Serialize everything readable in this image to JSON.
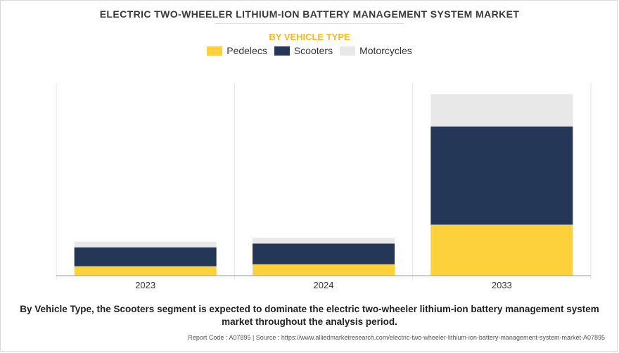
{
  "title": "ELECTRIC TWO-WHEELER LITHIUM-ION BATTERY MANAGEMENT SYSTEM MARKET",
  "subtitle": "BY VEHICLE TYPE",
  "caption": "By Vehicle Type, the Scooters segment is expected to dominate the electric two-wheeler lithium-ion battery management system market throughout the analysis period.",
  "footer": "Report Code : A07895  |  Source : https://www.alliedmarketresearch.com/electric-two-wheeler-lithium-ion-battery-management-system-market-A07895",
  "chart_data": {
    "type": "bar",
    "stacked": true,
    "categories": [
      "2023",
      "2024",
      "2033"
    ],
    "series": [
      {
        "name": "Pedelecs",
        "color": "#fdd13c",
        "values": [
          5,
          6,
          27
        ]
      },
      {
        "name": "Scooters",
        "color": "#253757",
        "values": [
          10,
          11,
          52
        ]
      },
      {
        "name": "Motorcycles",
        "color": "#e8e8e8",
        "values": [
          3,
          3,
          17
        ]
      }
    ],
    "ylim": [
      0,
      102
    ],
    "y_axis_visible": false,
    "grid": false,
    "legend_position": "top-center"
  }
}
